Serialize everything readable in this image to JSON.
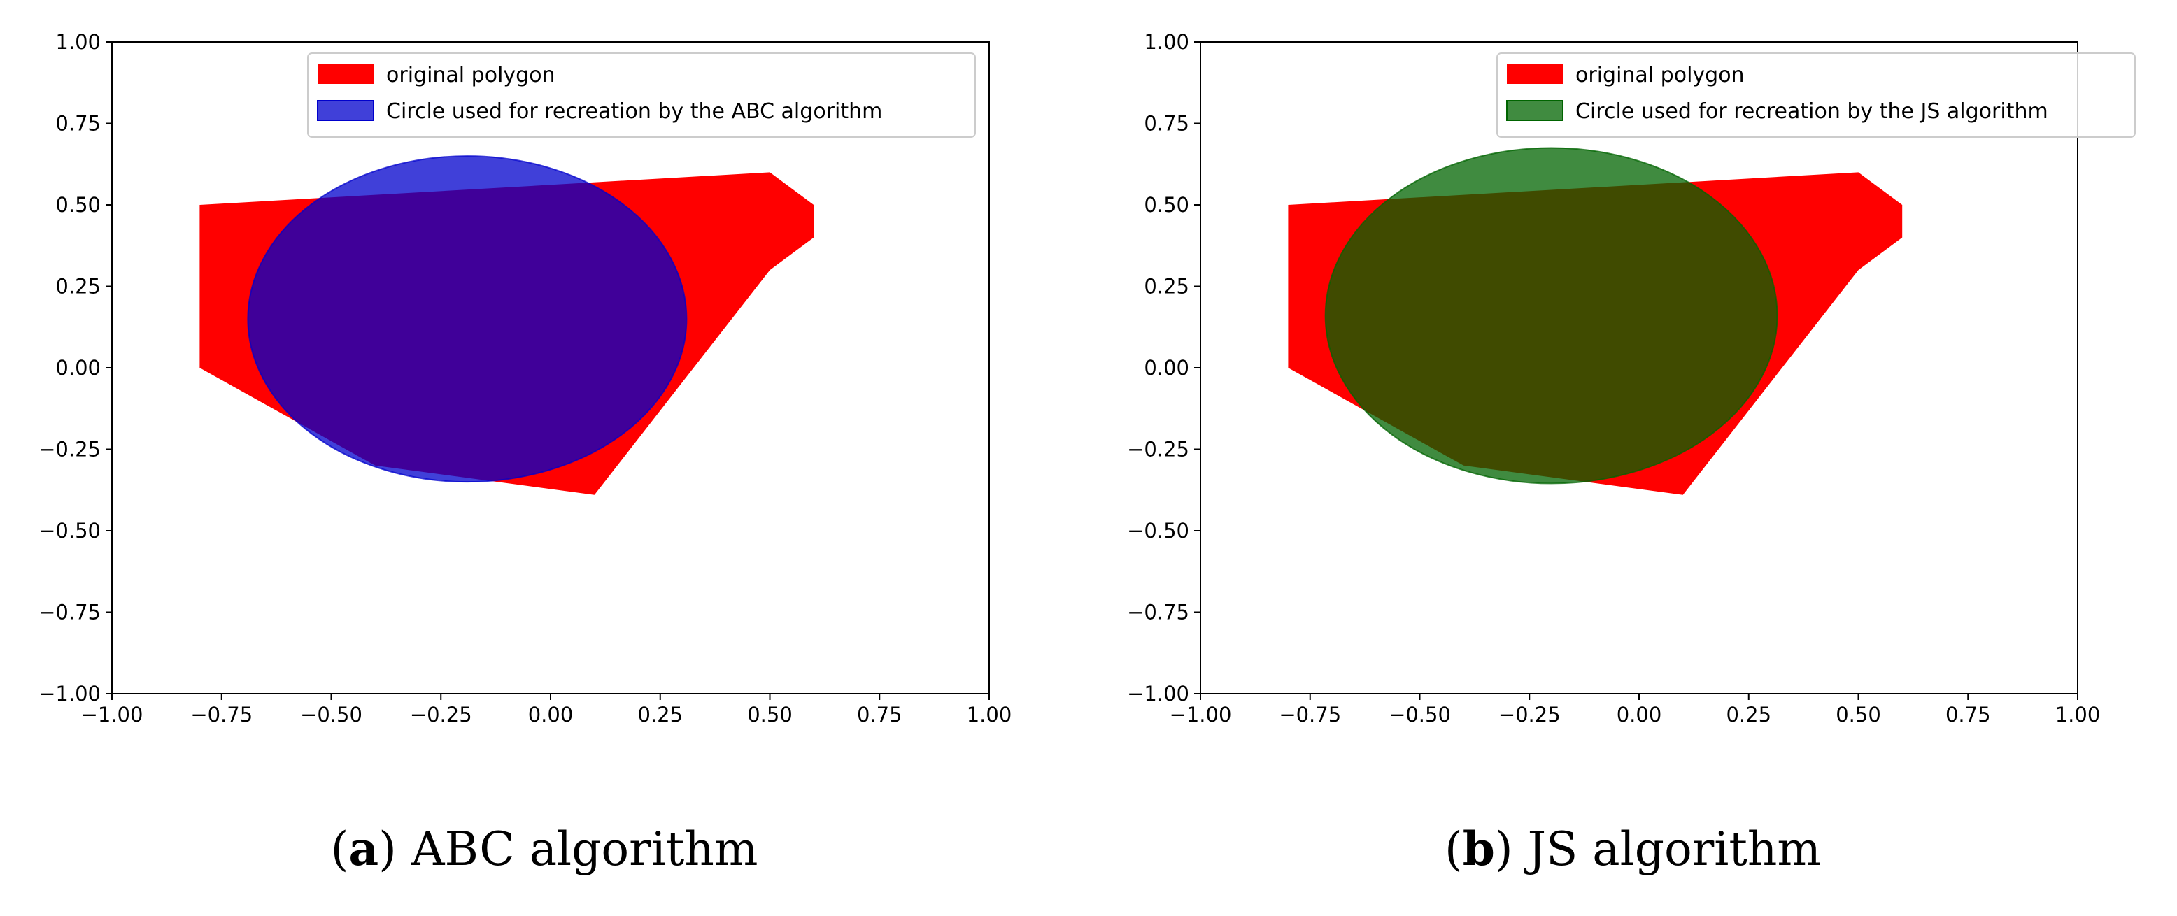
{
  "chart_data": [
    {
      "type": "scatter",
      "caption_tag": "a",
      "caption_text": "ABC algorithm",
      "xlim": [
        -1.0,
        1.0
      ],
      "ylim": [
        -1.0,
        1.0
      ],
      "xticks": [
        -1.0,
        -0.75,
        -0.5,
        -0.25,
        0.0,
        0.25,
        0.5,
        0.75,
        1.0
      ],
      "yticks": [
        -1.0,
        -0.75,
        -0.5,
        -0.25,
        0.0,
        0.25,
        0.5,
        0.75,
        1.0
      ],
      "xtick_labels": [
        "−1.00",
        "−0.75",
        "−0.50",
        "−0.25",
        "0.00",
        "0.25",
        "0.50",
        "0.75",
        "1.00"
      ],
      "ytick_labels": [
        "−1.00",
        "−0.75",
        "−0.50",
        "−0.25",
        "0.00",
        "0.25",
        "0.50",
        "0.75",
        "1.00"
      ],
      "legend_position": "upper center",
      "polygon": {
        "name": "original polygon",
        "color": "#ff0000",
        "points": [
          [
            -0.8,
            0.5
          ],
          [
            0.5,
            0.6
          ],
          [
            0.6,
            0.5
          ],
          [
            0.6,
            0.4
          ],
          [
            0.5,
            0.3
          ],
          [
            0.1,
            -0.39
          ],
          [
            -0.4,
            -0.3
          ],
          [
            -0.8,
            0.0
          ]
        ]
      },
      "circle": {
        "name": "Circle used for recreation by the ABC algorithm",
        "color": "#0000cc",
        "alpha": 0.75,
        "center": [
          -0.19,
          0.15
        ],
        "radius": 0.5
      }
    },
    {
      "type": "scatter",
      "caption_tag": "b",
      "caption_text": "JS algorithm",
      "xlim": [
        -1.0,
        1.0
      ],
      "ylim": [
        -1.0,
        1.0
      ],
      "xticks": [
        -1.0,
        -0.75,
        -0.5,
        -0.25,
        0.0,
        0.25,
        0.5,
        0.75,
        1.0
      ],
      "yticks": [
        -1.0,
        -0.75,
        -0.5,
        -0.25,
        0.0,
        0.25,
        0.5,
        0.75,
        1.0
      ],
      "xtick_labels": [
        "−1.00",
        "−0.75",
        "−0.50",
        "−0.25",
        "0.00",
        "0.25",
        "0.50",
        "0.75",
        "1.00"
      ],
      "ytick_labels": [
        "−1.00",
        "−0.75",
        "−0.50",
        "−0.25",
        "0.00",
        "0.25",
        "0.50",
        "0.75",
        "1.00"
      ],
      "legend_position": "upper right",
      "polygon": {
        "name": "original polygon",
        "color": "#ff0000",
        "points": [
          [
            -0.8,
            0.5
          ],
          [
            0.5,
            0.6
          ],
          [
            0.6,
            0.5
          ],
          [
            0.6,
            0.4
          ],
          [
            0.5,
            0.3
          ],
          [
            0.1,
            -0.39
          ],
          [
            -0.4,
            -0.3
          ],
          [
            -0.8,
            0.0
          ]
        ]
      },
      "circle": {
        "name": "Circle used for recreation by the JS algorithm",
        "color": "#006400",
        "alpha": 0.75,
        "center": [
          -0.2,
          0.16
        ],
        "radius": 0.515
      }
    }
  ]
}
